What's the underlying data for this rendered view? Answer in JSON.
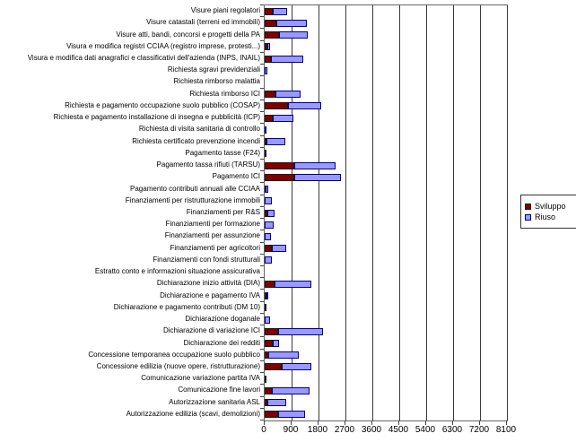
{
  "chart_data": {
    "type": "bar",
    "orientation": "horizontal",
    "stacked": true,
    "title": "",
    "xlabel": "",
    "ylabel": "",
    "xlim": [
      0,
      8100
    ],
    "xticks": [
      0,
      900,
      1800,
      2700,
      3600,
      4500,
      5400,
      6300,
      7200,
      8100
    ],
    "grid": "vertical",
    "legend_position": "right",
    "categories": [
      "Visure piani regolatori",
      "Visure catastali (terreni ed immobili)",
      "Visure atti, bandi, concorsi e progetti della PA",
      "Visura e modifica registri CCIAA (registro imprese, protesti...)",
      "Visura e modifica dati anagrafici e classificativi dell'azienda (INPS, INAIL)",
      "Richiesta sgravi previdenziali",
      "Richiesta rimborso malattia",
      "Richiesta rimborso ICI",
      "Richiesta e pagamento occupazione suolo pubblico (COSAP)",
      "Richiesta e pagamento installazione di insegna e pubblicità (ICP)",
      "Richiesta di visita sanitaria di controllo",
      "Richiesta certificato prevenzione incendi",
      "Pagamento tasse (F24)",
      "Pagamento tassa rifiuti (TARSU)",
      "Pagamento ICI",
      "Pagamento contributi annuali alle CCIAA",
      "Finanziamenti per ristrutturazione immobili",
      "Finanziamenti per R&S",
      "Finanziamenti per formazione",
      "Finanziamenti per assunzione",
      "Finanziamenti per agricoltori",
      "Finanziamenti con fondi strutturali",
      "Estratto conto e informazioni situazione assicurativa",
      "Dichiarazione inizio attività (DIA)",
      "Dichiarazione e pagamento IVA",
      "Dichiarazione e pagamento contributi (DM 10)",
      "Dichiarazione doganale",
      "Dichiarazione di variazione ICI",
      "Dichiarazione dei redditi",
      "Concessione temporanea occupazione suolo pubblico",
      "Concessione edilizia (nuove opere, ristrutturazione)",
      "Comunicazione variazione partita IVA",
      "Comunicazione fine lavori",
      "Autorizzazione sanitaria ASL",
      "Autorizzazione edilizia (scavi, demolizioni)"
    ],
    "series": [
      {
        "name": "Sviluppo",
        "color": "#800000",
        "border_color": "#1a1a1a",
        "values": [
          280,
          400,
          480,
          80,
          210,
          0,
          0,
          360,
          780,
          260,
          0,
          60,
          40,
          1000,
          1000,
          40,
          0,
          90,
          0,
          0,
          240,
          0,
          0,
          340,
          50,
          30,
          0,
          450,
          280,
          130,
          560,
          40,
          250,
          100,
          450
        ]
      },
      {
        "name": "Riuso",
        "color": "#9999ff",
        "border_color": "#000080",
        "values": [
          480,
          1000,
          960,
          100,
          1080,
          80,
          0,
          830,
          1110,
          700,
          40,
          620,
          0,
          1360,
          1540,
          90,
          250,
          250,
          290,
          220,
          480,
          240,
          0,
          1220,
          80,
          0,
          180,
          1510,
          200,
          1020,
          1010,
          0,
          1240,
          630,
          910
        ]
      }
    ]
  }
}
